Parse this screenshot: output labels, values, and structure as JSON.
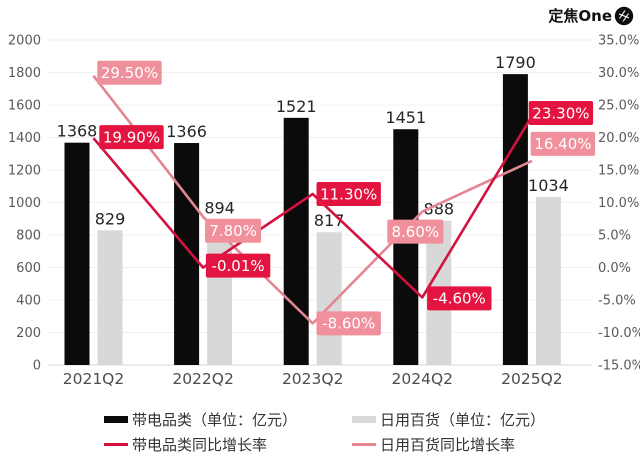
{
  "brand": {
    "name": "定焦One"
  },
  "colors": {
    "electrical_bar": "#0b0b0b",
    "daily_bar": "#d8d8d8",
    "electrical_line": "#d31240",
    "daily_line": "#e28692",
    "electrical_badge": "#e31540",
    "daily_badge": "#f0909c",
    "badge_text": "#ffffff",
    "axis_text": "#5a5a5a",
    "category_text": "#4d4d4d",
    "value_text": "#262626",
    "grid": "#f0f0f0",
    "axis_line": "#d9d9d9"
  },
  "chart_data": {
    "type": "combo-bar-line",
    "categories": [
      "2021Q2",
      "2022Q2",
      "2023Q2",
      "2024Q2",
      "2025Q2"
    ],
    "bar_series": [
      {
        "name": "带电品类（单位：亿元）",
        "values": [
          1368,
          1366,
          1521,
          1451,
          1790
        ],
        "color_key": "electrical_bar"
      },
      {
        "name": "日用百货（单位：亿元）",
        "values": [
          829,
          894,
          817,
          888,
          1034
        ],
        "color_key": "daily_bar"
      }
    ],
    "line_series": [
      {
        "name": "带电品类同比增长率",
        "values": [
          19.9,
          -0.01,
          11.3,
          -4.6,
          23.3
        ],
        "point_labels": [
          "19.90%",
          "-0.01%",
          "11.30%",
          "-4.60%",
          "23.30%"
        ],
        "line_color_key": "electrical_line",
        "badge_color_key": "electrical_badge"
      },
      {
        "name": "日用百货同比增长率",
        "values": [
          29.5,
          7.8,
          -8.6,
          8.6,
          16.4
        ],
        "point_labels": [
          "29.50%",
          "7.80%",
          "-8.60%",
          "8.60%",
          "16.40%"
        ],
        "line_color_key": "daily_line",
        "badge_color_key": "daily_badge"
      }
    ],
    "left_axis": {
      "min": 0,
      "max": 2000,
      "step": 200,
      "tick_labels": [
        "0",
        "200",
        "400",
        "600",
        "800",
        "1000",
        "1200",
        "1400",
        "1600",
        "1800",
        "2000"
      ]
    },
    "right_axis": {
      "min": -15,
      "max": 35,
      "step": 5,
      "tick_labels": [
        "-15.0%",
        "-10.0%",
        "-5.0%",
        "0.0%",
        "5.0%",
        "10.0%",
        "15.0%",
        "20.0%",
        "25.0%",
        "30.0%",
        "35.0%"
      ]
    },
    "grid": "horizontal-faint",
    "legend_position": "bottom"
  }
}
